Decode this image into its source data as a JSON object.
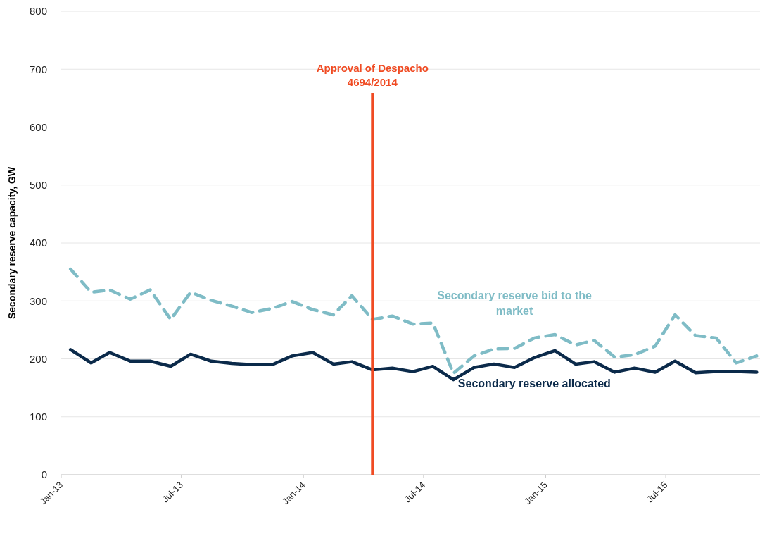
{
  "chart_data": {
    "type": "line",
    "ylabel": "Secondary reserve capacity, GW",
    "x": [
      "2013-01-15",
      "2013-02-15",
      "2013-03-15",
      "2013-04-15",
      "2013-05-15",
      "2013-06-15",
      "2013-07-15",
      "2013-08-15",
      "2013-09-15",
      "2013-10-15",
      "2013-11-15",
      "2013-12-15",
      "2014-01-15",
      "2014-02-15",
      "2014-03-15",
      "2014-04-15",
      "2014-05-15",
      "2014-06-15",
      "2014-07-15",
      "2014-08-15",
      "2014-09-15",
      "2014-10-15",
      "2014-11-15",
      "2014-12-15",
      "2015-01-15",
      "2015-02-15",
      "2015-03-15",
      "2015-04-15",
      "2015-05-15",
      "2015-06-15",
      "2015-07-15",
      "2015-08-15",
      "2015-09-15",
      "2015-10-15",
      "2015-11-15"
    ],
    "series": [
      {
        "name": "Secondary reserve bid to the market",
        "color": "#7fbcc6",
        "line_style": "dashed",
        "values": [
          355,
          315,
          319,
          303,
          319,
          268,
          315,
          301,
          291,
          280,
          287,
          299,
          285,
          276,
          309,
          268,
          274,
          260,
          262,
          175,
          205,
          217,
          218,
          236,
          242,
          224,
          232,
          203,
          207,
          222,
          276,
          240,
          236,
          193,
          205
        ]
      },
      {
        "name": "Secondary reserve allocated",
        "color": "#0b2a4a",
        "line_style": "solid",
        "values": [
          216,
          193,
          211,
          196,
          196,
          187,
          208,
          196,
          192,
          190,
          190,
          205,
          211,
          191,
          195,
          181,
          184,
          178,
          187,
          164,
          185,
          191,
          185,
          202,
          214,
          191,
          195,
          177,
          184,
          177,
          196,
          176,
          178,
          178,
          177
        ]
      }
    ],
    "xlim": [
      "2013-01-01",
      "2015-11-20"
    ],
    "xticks": [
      {
        "value": "2013-01-01",
        "label": "Jan-13"
      },
      {
        "value": "2013-07-01",
        "label": "Jul-13"
      },
      {
        "value": "2014-01-01",
        "label": "Jan-14"
      },
      {
        "value": "2014-07-01",
        "label": "Jul-14"
      },
      {
        "value": "2015-01-01",
        "label": "Jan-15"
      },
      {
        "value": "2015-07-01",
        "label": "Jul-15"
      }
    ],
    "ylim": [
      0,
      800
    ],
    "yticks": [
      0,
      100,
      200,
      300,
      400,
      500,
      600,
      700,
      800
    ],
    "grid": "y",
    "legend": false,
    "marker": "none",
    "ref_lines": [
      {
        "axis": "x",
        "value": "2014-04-15",
        "label": "Approval of Despacho 4694/2014",
        "color": "#f04b23"
      }
    ]
  }
}
